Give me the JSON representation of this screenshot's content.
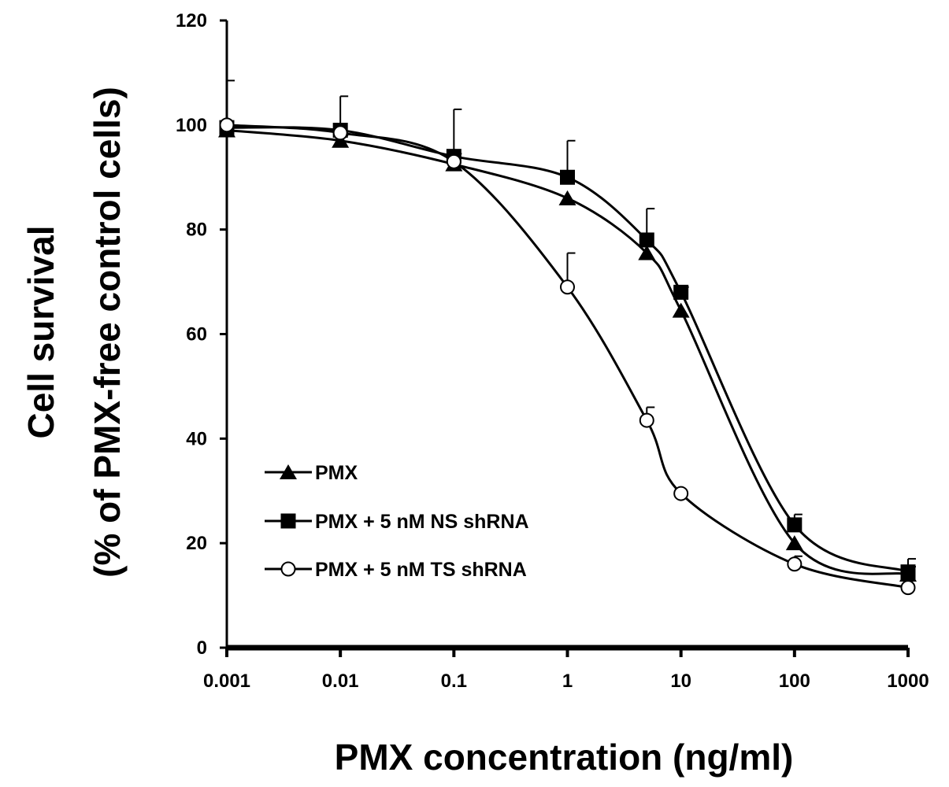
{
  "chart_data": {
    "type": "line",
    "title": "",
    "xlabel": "PMX concentration (ng/ml)",
    "ylabel_line1": "Cell survival",
    "ylabel_line2": "(% of PMX-free control cells)",
    "x_scale": "log",
    "x": [
      0.001,
      0.01,
      0.1,
      1,
      5,
      10,
      100,
      1000
    ],
    "x_tick_labels": [
      "0.001",
      "0.01",
      "0.1",
      "1",
      "10",
      "100",
      "1000"
    ],
    "x_ticks": [
      0.001,
      0.01,
      0.1,
      1,
      10,
      100,
      1000
    ],
    "xlim": [
      0.001,
      1000
    ],
    "ylim": [
      0,
      120
    ],
    "y_ticks": [
      0,
      20,
      40,
      60,
      80,
      100,
      120
    ],
    "y_tick_labels": [
      "0",
      "20",
      "40",
      "60",
      "80",
      "100",
      "120"
    ],
    "grid": false,
    "legend_position": "bottom-left",
    "series": [
      {
        "name": "PMX",
        "marker": "triangle",
        "values": [
          99,
          97,
          92.5,
          86,
          75.5,
          64.5,
          20,
          14
        ],
        "errors": [
          0,
          1,
          2,
          0,
          0,
          0,
          0,
          1.5
        ]
      },
      {
        "name": "PMX + 5 nM NS shRNA",
        "marker": "square",
        "values": [
          99.5,
          99,
          94,
          90,
          78,
          68,
          23.5,
          14.5
        ],
        "errors": [
          9,
          6.5,
          9,
          7,
          6,
          1,
          2,
          2.5
        ]
      },
      {
        "name": "PMX + 5 nM TS shRNA",
        "marker": "open-circle",
        "values": [
          100,
          98.5,
          93,
          69,
          43.5,
          29.5,
          16,
          11.5
        ],
        "errors": [
          0,
          0,
          0,
          6.5,
          2.5,
          0,
          1.5,
          0
        ]
      }
    ]
  }
}
